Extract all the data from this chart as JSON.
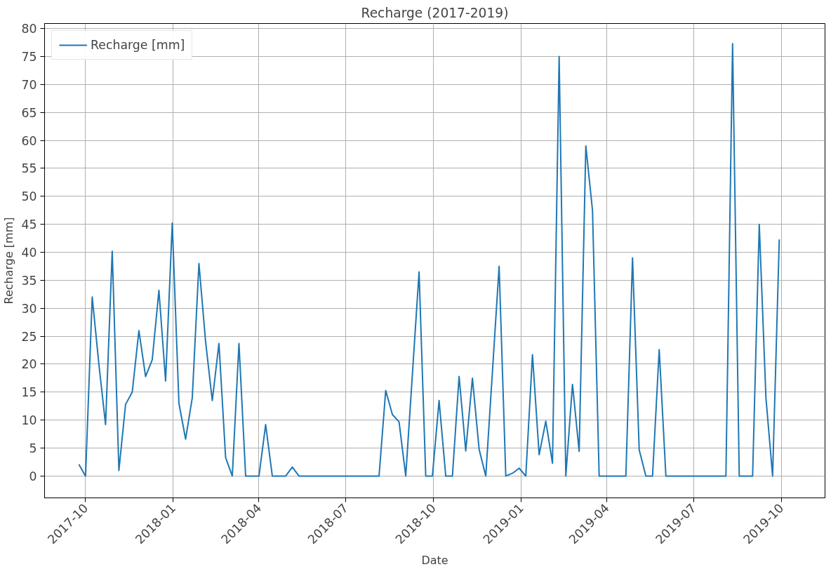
{
  "chart_data": {
    "type": "line",
    "title": "Recharge (2017-2019)",
    "xlabel": "Date",
    "ylabel": "Recharge [mm]",
    "x": [
      "2017-09-24",
      "2017-10-01",
      "2017-10-08",
      "2017-10-15",
      "2017-10-22",
      "2017-10-29",
      "2017-11-05",
      "2017-11-12",
      "2017-11-19",
      "2017-11-26",
      "2017-12-03",
      "2017-12-10",
      "2017-12-17",
      "2017-12-24",
      "2017-12-31",
      "2018-01-07",
      "2018-01-14",
      "2018-01-21",
      "2018-01-28",
      "2018-02-04",
      "2018-02-11",
      "2018-02-18",
      "2018-02-25",
      "2018-03-04",
      "2018-03-11",
      "2018-03-18",
      "2018-03-25",
      "2018-04-01",
      "2018-04-08",
      "2018-04-15",
      "2018-04-22",
      "2018-04-29",
      "2018-05-06",
      "2018-05-13",
      "2018-05-20",
      "2018-05-27",
      "2018-06-03",
      "2018-06-10",
      "2018-06-17",
      "2018-06-24",
      "2018-07-01",
      "2018-07-08",
      "2018-07-15",
      "2018-07-22",
      "2018-07-29",
      "2018-08-05",
      "2018-08-12",
      "2018-08-19",
      "2018-08-26",
      "2018-09-02",
      "2018-09-09",
      "2018-09-16",
      "2018-09-23",
      "2018-09-30",
      "2018-10-07",
      "2018-10-14",
      "2018-10-21",
      "2018-10-28",
      "2018-11-04",
      "2018-11-11",
      "2018-11-18",
      "2018-11-25",
      "2018-12-02",
      "2018-12-09",
      "2018-12-16",
      "2018-12-23",
      "2018-12-30",
      "2019-01-06",
      "2019-01-13",
      "2019-01-20",
      "2019-01-27",
      "2019-02-03",
      "2019-02-10",
      "2019-02-17",
      "2019-02-24",
      "2019-03-03",
      "2019-03-10",
      "2019-03-17",
      "2019-03-24",
      "2019-03-31",
      "2019-04-07",
      "2019-04-14",
      "2019-04-21",
      "2019-04-28",
      "2019-05-05",
      "2019-05-12",
      "2019-05-19",
      "2019-05-26",
      "2019-06-02",
      "2019-06-09",
      "2019-06-16",
      "2019-06-23",
      "2019-06-30",
      "2019-07-07",
      "2019-07-14",
      "2019-07-21",
      "2019-07-28",
      "2019-08-04",
      "2019-08-11",
      "2019-08-18",
      "2019-08-25",
      "2019-09-01",
      "2019-09-08",
      "2019-09-15",
      "2019-09-22",
      "2019-09-29"
    ],
    "series": [
      {
        "name": "Recharge [mm]",
        "color": "#1f77b4",
        "values": [
          2.1,
          0,
          32,
          20,
          9.2,
          40.2,
          1,
          12.8,
          15,
          26,
          17.8,
          20.8,
          33.2,
          17,
          45.2,
          13,
          6.6,
          14,
          38,
          24,
          13.5,
          23.7,
          3.3,
          0,
          23.7,
          0,
          0,
          0,
          9.2,
          0,
          0,
          0,
          1.6,
          0,
          0,
          0,
          0,
          0,
          0,
          0,
          0,
          0,
          0,
          0,
          0,
          0,
          15.3,
          11,
          9.7,
          0,
          18.2,
          36.5,
          0,
          0,
          13.5,
          0,
          0,
          17.8,
          4.5,
          17.5,
          4.8,
          0,
          18.7,
          37.5,
          0,
          0.5,
          1.4,
          0,
          21.7,
          3.8,
          9.8,
          2.3,
          75,
          0,
          16.4,
          4.4,
          59,
          47.5,
          0,
          0,
          0,
          0,
          0,
          39,
          4.7,
          0,
          0,
          22.6,
          0,
          0,
          0,
          0,
          0,
          0,
          0,
          0,
          0,
          0,
          77.3,
          0,
          0,
          0,
          45,
          14,
          0,
          42.3
        ]
      }
    ],
    "xlim": [
      "2017-08-19",
      "2019-11-16"
    ],
    "xticks": [
      "2017-10",
      "2018-01",
      "2018-04",
      "2018-07",
      "2018-10",
      "2019-01",
      "2019-04",
      "2019-07",
      "2019-10"
    ],
    "ylim": [
      -3.9,
      80.9
    ],
    "yticks": [
      0,
      5,
      10,
      15,
      20,
      25,
      30,
      35,
      40,
      45,
      50,
      55,
      60,
      65,
      70,
      75,
      80
    ],
    "grid": true,
    "legend": "top left",
    "line_style": "solid",
    "marker": "none"
  }
}
